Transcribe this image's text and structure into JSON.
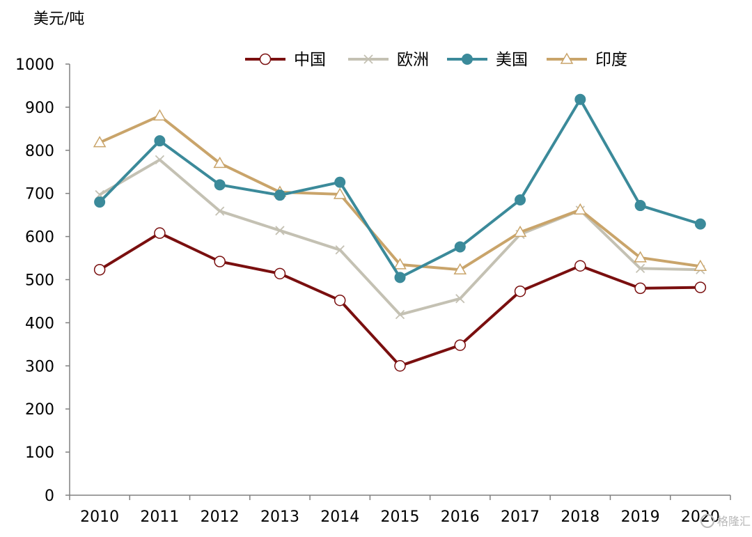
{
  "chart_data": {
    "type": "line",
    "title": "",
    "ylabel": "美元/吨",
    "xlabel": "",
    "ylim": [
      0,
      1000
    ],
    "yticks": [
      0,
      100,
      200,
      300,
      400,
      500,
      600,
      700,
      800,
      900,
      1000
    ],
    "categories": [
      "2010",
      "2011",
      "2012",
      "2013",
      "2014",
      "2015",
      "2016",
      "2017",
      "2018",
      "2019",
      "2020"
    ],
    "grid": false,
    "legend_position": "top",
    "series": [
      {
        "name": "中国",
        "color": "#7a0f0f",
        "marker": "open-circle",
        "values": [
          523,
          608,
          542,
          514,
          452,
          300,
          348,
          473,
          532,
          480,
          482
        ]
      },
      {
        "name": "欧洲",
        "color": "#c4c1b3",
        "marker": "x",
        "values": [
          697,
          778,
          659,
          614,
          569,
          419,
          456,
          605,
          661,
          526,
          523
        ]
      },
      {
        "name": "美国",
        "color": "#3b8a9a",
        "marker": "filled-circle",
        "values": [
          680,
          822,
          720,
          696,
          726,
          505,
          576,
          685,
          918,
          672,
          629
        ]
      },
      {
        "name": "印度",
        "color": "#c9a46a",
        "marker": "open-triangle",
        "values": [
          818,
          880,
          770,
          703,
          698,
          535,
          523,
          610,
          662,
          551,
          531
        ]
      }
    ]
  },
  "watermark": {
    "text": "格隆汇"
  }
}
